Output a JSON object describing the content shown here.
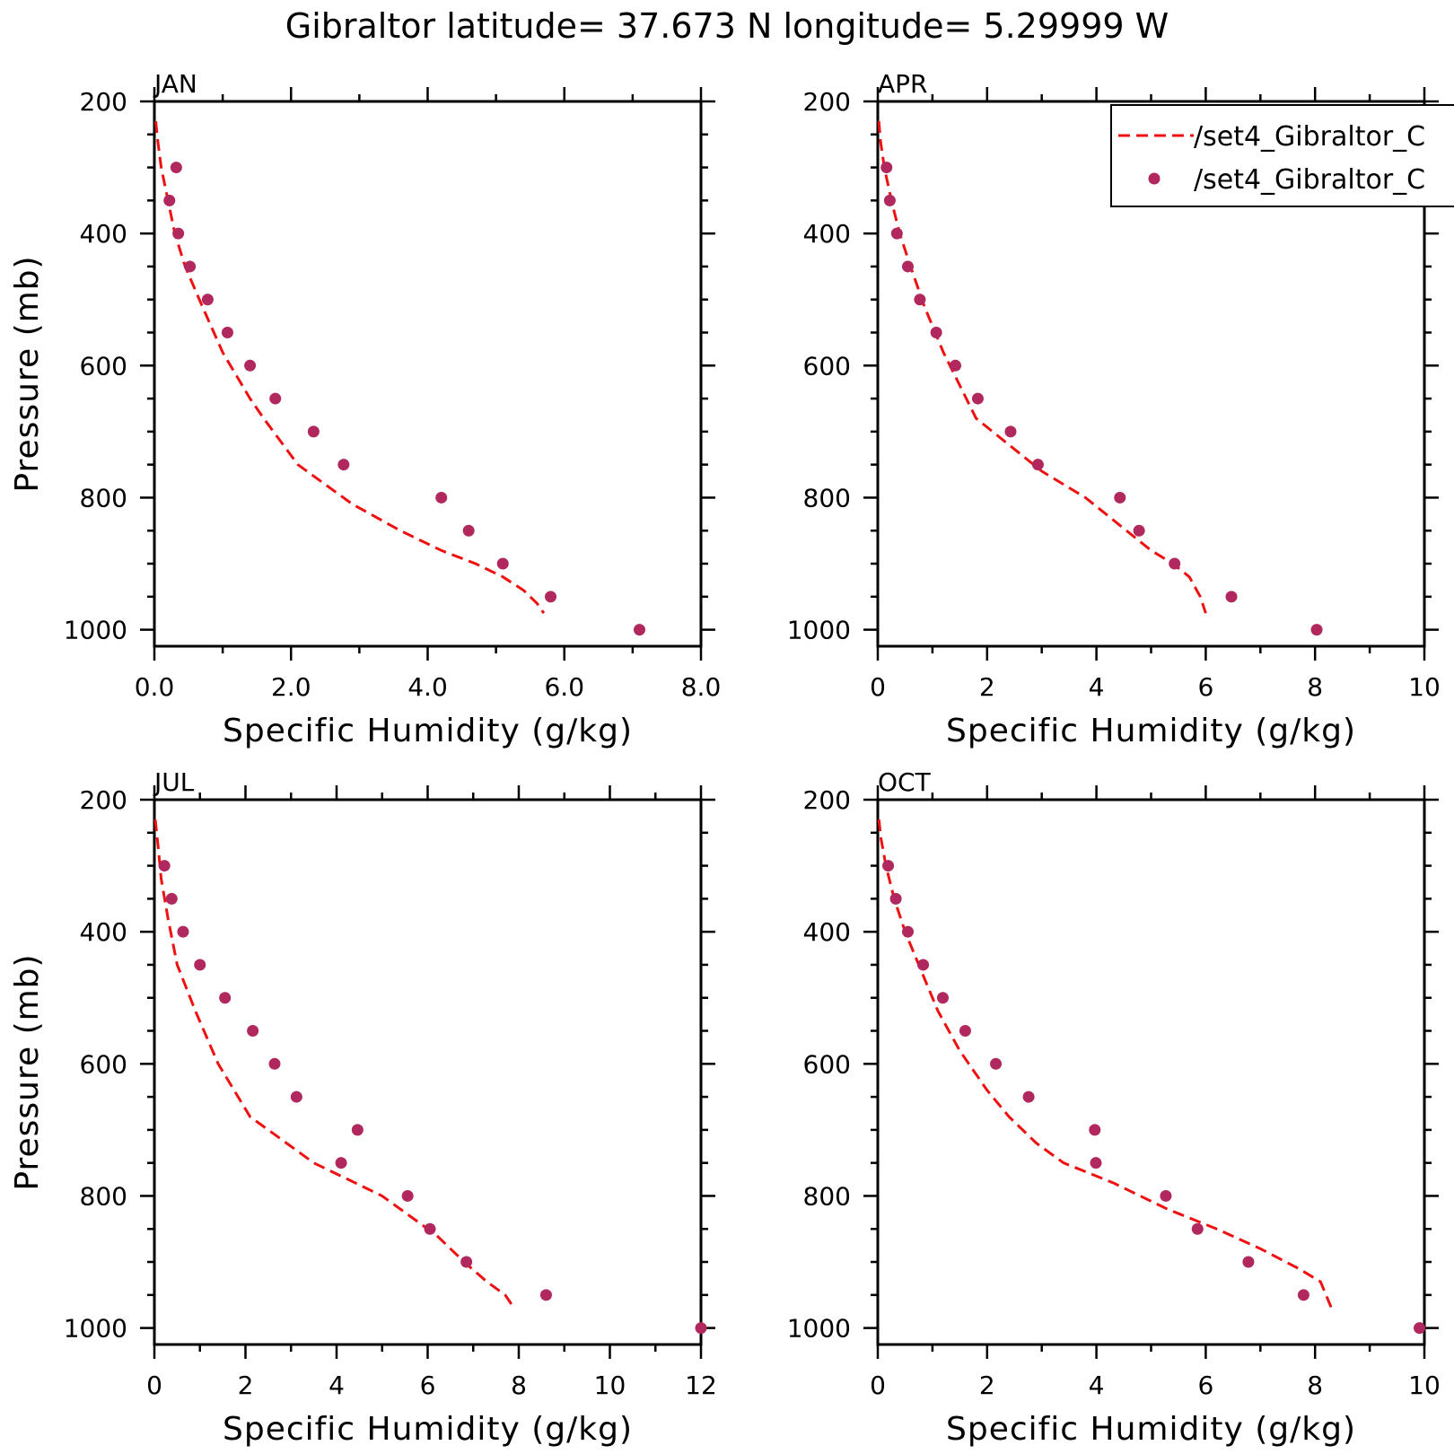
{
  "title": "Gibraltor  latitude= 37.673 N longitude= 5.29999 W",
  "colors": {
    "model_line": "#ee1111",
    "obs_marker": "#b0285e",
    "axis": "#000000"
  },
  "legend": {
    "placement": "top-right of APR panel",
    "entries": [
      {
        "label": "/set4_Gibraltor_C",
        "style": "dashed-line",
        "color": "#ee1111"
      },
      {
        "label": "/set4_Gibraltor_C",
        "style": "marker",
        "color": "#b0285e"
      }
    ]
  },
  "chart_data": [
    {
      "type": "line",
      "panel_label": "JAN",
      "xlabel": "Specific Humidity (g/kg)",
      "ylabel": "Pressure (mb)",
      "xlim": [
        0,
        8
      ],
      "ylim": [
        1025,
        200
      ],
      "y_inverted": true,
      "xticks": [
        0,
        2,
        4,
        6,
        8
      ],
      "xtick_labels": [
        "0.0",
        "2.0",
        "4.0",
        "6.0",
        "8.0"
      ],
      "yticks": [
        200,
        400,
        600,
        800,
        1000
      ],
      "ytick_labels": [
        "200",
        "400",
        "600",
        "800",
        "1000"
      ],
      "series": [
        {
          "kind": "line",
          "x": [
            0.02,
            0.05,
            0.1,
            0.2,
            0.3,
            0.45,
            0.7,
            1.0,
            1.4,
            1.6,
            2.1,
            2.9,
            3.6,
            4.2,
            4.7,
            5.1,
            5.4,
            5.6,
            5.7
          ],
          "y": [
            230,
            260,
            300,
            350,
            400,
            450,
            510,
            580,
            650,
            680,
            750,
            810,
            850,
            880,
            900,
            920,
            940,
            960,
            975
          ]
        },
        {
          "kind": "scatter",
          "x": [
            0.32,
            0.22,
            0.35,
            0.52,
            0.78,
            1.07,
            1.4,
            1.77,
            2.33,
            2.77,
            4.2,
            4.6,
            5.1,
            5.8,
            7.1
          ],
          "y": [
            300,
            350,
            400,
            450,
            500,
            550,
            600,
            650,
            700,
            750,
            800,
            850,
            900,
            950,
            1000
          ]
        }
      ]
    },
    {
      "type": "line",
      "panel_label": "APR",
      "xlabel": "Specific Humidity (g/kg)",
      "ylabel": "",
      "xlim": [
        0,
        10
      ],
      "ylim": [
        1025,
        200
      ],
      "y_inverted": true,
      "xticks": [
        0,
        2,
        4,
        6,
        8,
        10
      ],
      "xtick_labels": [
        "0",
        "2",
        "4",
        "6",
        "8",
        "10"
      ],
      "yticks": [
        200,
        400,
        600,
        800,
        1000
      ],
      "ytick_labels": [
        "200",
        "400",
        "600",
        "800",
        "1000"
      ],
      "series": [
        {
          "kind": "line",
          "x": [
            0.02,
            0.05,
            0.12,
            0.25,
            0.4,
            0.6,
            0.85,
            1.2,
            1.8,
            2.4,
            3.0,
            3.8,
            4.4,
            5.0,
            5.4,
            5.7,
            5.9,
            6.0
          ],
          "y": [
            230,
            260,
            300,
            350,
            400,
            450,
            510,
            580,
            680,
            720,
            760,
            800,
            840,
            880,
            900,
            920,
            950,
            975
          ]
        },
        {
          "kind": "scatter",
          "x": [
            0.16,
            0.22,
            0.35,
            0.55,
            0.77,
            1.07,
            1.42,
            1.83,
            2.43,
            2.93,
            4.43,
            4.78,
            5.43,
            6.47,
            8.03
          ],
          "y": [
            300,
            350,
            400,
            450,
            500,
            550,
            600,
            650,
            700,
            750,
            800,
            850,
            900,
            950,
            1000
          ]
        }
      ]
    },
    {
      "type": "line",
      "panel_label": "JUL",
      "xlabel": "Specific Humidity (g/kg)",
      "ylabel": "Pressure (mb)",
      "xlim": [
        0,
        12
      ],
      "ylim": [
        1025,
        200
      ],
      "y_inverted": true,
      "xticks": [
        0,
        2,
        4,
        6,
        8,
        10,
        12
      ],
      "xtick_labels": [
        "0",
        "2",
        "4",
        "6",
        "8",
        "10",
        "12"
      ],
      "series": [
        {
          "kind": "line",
          "x": [
            0.02,
            0.08,
            0.15,
            0.3,
            0.5,
            0.9,
            1.4,
            2.1,
            2.9,
            3.5,
            4.4,
            5.0,
            5.6,
            6.2,
            6.8,
            7.3,
            7.7,
            7.9
          ],
          "y": [
            230,
            270,
            320,
            380,
            450,
            520,
            600,
            680,
            720,
            750,
            780,
            800,
            830,
            860,
            900,
            930,
            950,
            970
          ]
        },
        {
          "kind": "scatter",
          "x": [
            0.22,
            0.38,
            0.63,
            1.0,
            1.55,
            2.16,
            2.64,
            3.12,
            4.46,
            4.1,
            5.56,
            6.05,
            6.85,
            8.6,
            12.0
          ],
          "y": [
            300,
            350,
            400,
            450,
            500,
            550,
            600,
            650,
            700,
            750,
            800,
            850,
            900,
            950,
            1000
          ]
        }
      ],
      "yticks": [
        200,
        400,
        600,
        800,
        1000
      ],
      "ytick_labels": [
        "200",
        "400",
        "600",
        "800",
        "1000"
      ]
    },
    {
      "type": "line",
      "panel_label": "OCT",
      "xlabel": "Specific Humidity (g/kg)",
      "ylabel": "",
      "xlim": [
        0,
        10
      ],
      "ylim": [
        1025,
        200
      ],
      "y_inverted": true,
      "xticks": [
        0,
        2,
        4,
        6,
        8,
        10
      ],
      "xtick_labels": [
        "0",
        "2",
        "4",
        "6",
        "8",
        "10"
      ],
      "yticks": [
        200,
        400,
        600,
        800,
        1000
      ],
      "ytick_labels": [
        "200",
        "400",
        "600",
        "800",
        "1000"
      ],
      "series": [
        {
          "kind": "line",
          "x": [
            0.02,
            0.06,
            0.15,
            0.3,
            0.5,
            0.8,
            1.1,
            1.5,
            2.0,
            2.4,
            2.9,
            3.4,
            4.3,
            5.3,
            6.2,
            7.0,
            7.7,
            8.1,
            8.2,
            8.3
          ],
          "y": [
            230,
            260,
            300,
            350,
            400,
            460,
            520,
            580,
            640,
            680,
            720,
            750,
            780,
            820,
            850,
            880,
            910,
            930,
            950,
            970
          ]
        },
        {
          "kind": "scatter",
          "x": [
            0.19,
            0.33,
            0.55,
            0.83,
            1.19,
            1.6,
            2.16,
            2.76,
            3.97,
            3.99,
            5.27,
            5.85,
            6.78,
            7.79,
            9.91
          ],
          "y": [
            300,
            350,
            400,
            450,
            500,
            550,
            600,
            650,
            700,
            750,
            800,
            850,
            900,
            950,
            1000
          ]
        }
      ]
    }
  ]
}
